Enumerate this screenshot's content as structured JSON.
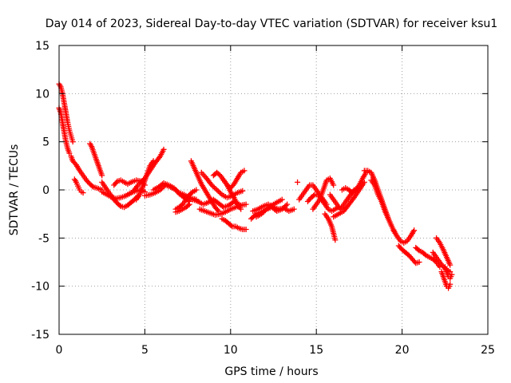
{
  "chart_data": {
    "type": "scatter",
    "title": "Day 014 of 2023, Sidereal Day-to-day VTEC variation (SDTVAR) for receiver ksu1",
    "xlabel": "GPS time / hours",
    "ylabel": "SDTVAR / TECUs",
    "xlim": [
      0,
      25
    ],
    "ylim": [
      -15,
      15
    ],
    "xticks": [
      0,
      5,
      10,
      15,
      20,
      25
    ],
    "yticks": [
      -15,
      -10,
      -5,
      0,
      5,
      10,
      15
    ],
    "grid": true,
    "marker": "+",
    "series": [
      {
        "name": "SDTVAR",
        "color": "#ff0000",
        "segments": [
          {
            "x": [
              0.0,
              0.1,
              0.2,
              0.3,
              0.4,
              0.5,
              0.6,
              0.7,
              0.8
            ],
            "y": [
              11.0,
              10.7,
              10.0,
              9.0,
              8.0,
              7.0,
              6.2,
              5.6,
              5.0
            ]
          },
          {
            "x": [
              0.0,
              0.1,
              0.2,
              0.3,
              0.4,
              0.5,
              0.6
            ],
            "y": [
              8.5,
              8.0,
              7.0,
              6.0,
              5.0,
              4.3,
              3.8
            ]
          },
          {
            "x": [
              0.7,
              0.8,
              1.0,
              1.2,
              1.4,
              1.6,
              1.8,
              2.0,
              2.2,
              2.5
            ],
            "y": [
              3.5,
              3.0,
              2.6,
              2.0,
              1.5,
              1.0,
              0.6,
              0.3,
              0.2,
              0.0
            ]
          },
          {
            "x": [
              0.9,
              1.0,
              1.1,
              1.2,
              1.3,
              1.4
            ],
            "y": [
              1.1,
              0.8,
              0.4,
              0.0,
              -0.2,
              -0.3
            ]
          },
          {
            "x": [
              1.8,
              1.9,
              2.0,
              2.1,
              2.2,
              2.3,
              2.4,
              2.5
            ],
            "y": [
              4.8,
              4.5,
              4.0,
              3.5,
              3.0,
              2.5,
              2.0,
              1.5
            ]
          },
          {
            "x": [
              2.5,
              2.8,
              3.0,
              3.2,
              3.4,
              3.6,
              3.8,
              4.0,
              4.2,
              4.4,
              4.6
            ],
            "y": [
              0.8,
              0.0,
              -0.5,
              -1.0,
              -1.4,
              -1.7,
              -1.8,
              -1.6,
              -1.3,
              -1.0,
              -0.6
            ]
          },
          {
            "x": [
              2.5,
              2.8,
              3.0,
              3.3,
              3.6,
              3.9,
              4.2,
              4.5,
              4.8,
              5.0
            ],
            "y": [
              -0.2,
              -0.5,
              -0.7,
              -0.9,
              -0.8,
              -0.6,
              -0.3,
              -0.1,
              0.0,
              -0.2
            ]
          },
          {
            "x": [
              3.2,
              3.4,
              3.6,
              3.8,
              4.0,
              4.2,
              4.5,
              4.8,
              5.0
            ],
            "y": [
              0.5,
              0.9,
              1.0,
              0.8,
              0.6,
              0.8,
              1.0,
              0.9,
              0.5
            ]
          },
          {
            "x": [
              4.0,
              4.3,
              4.6,
              5.0,
              5.3,
              5.6,
              5.9,
              6.1
            ],
            "y": [
              -0.5,
              -0.2,
              0.5,
              1.2,
              2.0,
              2.8,
              3.5,
              4.2
            ]
          },
          {
            "x": [
              4.5,
              4.7,
              4.9,
              5.1,
              5.3,
              5.5
            ],
            "y": [
              -1.0,
              -0.5,
              0.5,
              1.5,
              2.5,
              3.0
            ]
          },
          {
            "x": [
              5.0,
              5.3,
              5.6,
              5.9,
              6.2,
              6.5,
              6.8,
              7.0,
              7.3,
              7.6,
              8.0
            ],
            "y": [
              -0.6,
              -0.5,
              -0.3,
              0.0,
              0.5,
              0.3,
              0.0,
              -0.3,
              -0.5,
              -0.8,
              -1.0
            ]
          },
          {
            "x": [
              5.5,
              5.8,
              6.1,
              6.4,
              6.7,
              7.0,
              7.3,
              7.6
            ],
            "y": [
              0.0,
              0.3,
              0.7,
              0.5,
              0.2,
              -0.4,
              -0.8,
              -1.2
            ]
          },
          {
            "x": [
              6.8,
              7.0,
              7.2,
              7.4,
              7.6,
              7.8,
              8.0
            ],
            "y": [
              -2.0,
              -1.8,
              -1.5,
              -1.0,
              -0.5,
              -0.2,
              0.0
            ]
          },
          {
            "x": [
              6.8,
              7.0,
              7.2,
              7.4,
              7.6
            ],
            "y": [
              -2.3,
              -2.2,
              -2.0,
              -1.8,
              -1.5
            ]
          },
          {
            "x": [
              7.7,
              7.9,
              8.1,
              8.3,
              8.5,
              8.7,
              8.9,
              9.1,
              9.3
            ],
            "y": [
              3.0,
              2.2,
              1.4,
              0.6,
              0.0,
              -0.6,
              -1.2,
              -1.8,
              -2.2
            ]
          },
          {
            "x": [
              7.8,
              8.1,
              8.4,
              8.7,
              9.0,
              9.3,
              9.6,
              9.9,
              10.2,
              10.5
            ],
            "y": [
              -1.0,
              -1.2,
              -1.5,
              -1.3,
              -1.0,
              -1.4,
              -1.8,
              -1.6,
              -1.2,
              -1.5
            ]
          },
          {
            "x": [
              8.2,
              8.5,
              8.8,
              9.1,
              9.4,
              9.7,
              10.0,
              10.3,
              10.6,
              10.9
            ],
            "y": [
              -2.0,
              -2.2,
              -2.4,
              -2.6,
              -2.5,
              -2.3,
              -2.0,
              -1.8,
              -1.6,
              -1.5
            ]
          },
          {
            "x": [
              8.3,
              8.6,
              8.9,
              9.2,
              9.5,
              9.8,
              10.1,
              10.4,
              10.7
            ],
            "y": [
              1.8,
              1.2,
              0.5,
              0.0,
              -0.5,
              -0.8,
              -0.6,
              -0.3,
              -0.1
            ]
          },
          {
            "x": [
              9.0,
              9.2,
              9.4,
              9.6,
              9.8,
              10.0,
              10.2,
              10.4,
              10.6,
              10.8
            ],
            "y": [
              1.5,
              1.8,
              1.5,
              1.0,
              0.5,
              0.2,
              0.6,
              1.2,
              1.8,
              2.0
            ]
          },
          {
            "x": [
              9.5,
              9.7,
              9.9,
              10.1,
              10.3,
              10.5,
              10.7,
              10.9
            ],
            "y": [
              -3.0,
              -3.2,
              -3.5,
              -3.8,
              -3.8,
              -4.0,
              -4.1,
              -4.1
            ]
          },
          {
            "x": [
              9.6,
              9.8,
              10.0,
              10.2,
              10.4,
              10.6
            ],
            "y": [
              1.0,
              0.5,
              -0.2,
              -0.8,
              -1.5,
              -2.0
            ]
          },
          {
            "x": [
              11.2,
              11.5,
              11.8,
              12.1,
              12.4,
              12.7,
              13.0,
              13.3
            ],
            "y": [
              -3.0,
              -2.5,
              -2.3,
              -2.0,
              -1.8,
              -2.2,
              -2.0,
              -1.5
            ]
          },
          {
            "x": [
              11.3,
              11.6,
              11.9,
              12.2,
              12.5,
              12.8,
              13.1,
              13.4,
              13.7
            ],
            "y": [
              -2.2,
              -2.0,
              -1.7,
              -1.5,
              -1.8,
              -2.0,
              -1.9,
              -2.2,
              -2.0
            ]
          },
          {
            "x": [
              11.5,
              11.8,
              12.1,
              12.4,
              12.7,
              13.0
            ],
            "y": [
              -2.8,
              -2.5,
              -2.0,
              -1.6,
              -1.3,
              -1.0
            ]
          },
          {
            "x": [
              13.9
            ],
            "y": [
              0.8
            ]
          },
          {
            "x": [
              14.0,
              14.2,
              14.4,
              14.6,
              14.8,
              15.0,
              15.2,
              15.4,
              15.6
            ],
            "y": [
              -1.0,
              -0.5,
              0.0,
              0.5,
              0.5,
              0.0,
              -0.5,
              -1.0,
              -1.5
            ]
          },
          {
            "x": [
              14.5,
              14.7,
              14.9,
              15.1,
              15.3,
              15.5,
              15.7,
              15.9,
              16.1,
              16.3
            ],
            "y": [
              -1.2,
              -0.8,
              -0.5,
              -0.5,
              -1.0,
              -1.5,
              -2.0,
              -2.2,
              -2.0,
              -1.8
            ]
          },
          {
            "x": [
              14.8,
              15.0,
              15.2,
              15.4,
              15.6,
              15.8,
              16.0
            ],
            "y": [
              -2.0,
              -1.5,
              -1.0,
              0.0,
              1.0,
              1.2,
              0.5
            ]
          },
          {
            "x": [
              15.5,
              15.7,
              15.9,
              16.0,
              16.1
            ],
            "y": [
              -2.5,
              -3.0,
              -3.8,
              -4.5,
              -5.2
            ]
          },
          {
            "x": [
              15.8,
              16.0,
              16.2,
              16.4,
              16.6,
              16.8,
              17.0,
              17.2,
              17.4
            ],
            "y": [
              -0.5,
              -1.0,
              -1.5,
              -2.0,
              -1.5,
              -1.0,
              -0.5,
              0.0,
              0.2
            ]
          },
          {
            "x": [
              16.0,
              16.3,
              16.6,
              16.9,
              17.2,
              17.5,
              17.8
            ],
            "y": [
              -2.8,
              -2.5,
              -2.2,
              -1.5,
              -0.8,
              0.0,
              0.8
            ]
          },
          {
            "x": [
              16.5,
              16.7,
              16.9,
              17.1,
              17.3,
              17.5,
              17.7,
              17.9
            ],
            "y": [
              0.0,
              0.2,
              0.0,
              -0.3,
              0.0,
              0.5,
              1.2,
              1.8
            ]
          },
          {
            "x": [
              17.8,
              18.0,
              18.2,
              18.4,
              18.6,
              18.8,
              19.0,
              19.2,
              19.4,
              19.6
            ],
            "y": [
              2.0,
              2.0,
              1.8,
              1.0,
              0.0,
              -1.0,
              -2.0,
              -3.0,
              -3.8,
              -4.5
            ]
          },
          {
            "x": [
              18.2,
              18.4,
              18.6,
              18.8,
              19.0,
              19.2
            ],
            "y": [
              1.0,
              0.5,
              -0.5,
              -1.2,
              -2.2,
              -3.0
            ]
          },
          {
            "x": [
              19.5,
              19.7,
              19.9,
              20.1,
              20.3,
              20.5,
              20.7
            ],
            "y": [
              -4.2,
              -4.8,
              -5.3,
              -5.5,
              -5.3,
              -4.8,
              -4.2
            ]
          },
          {
            "x": [
              19.8,
              20.0,
              20.2,
              20.4,
              20.6,
              20.8,
              21.0
            ],
            "y": [
              -5.8,
              -6.2,
              -6.5,
              -6.8,
              -7.2,
              -7.6,
              -7.5
            ]
          },
          {
            "x": [
              20.8,
              21.0,
              21.2,
              21.4,
              21.6,
              21.8,
              22.0,
              22.2
            ],
            "y": [
              -6.0,
              -6.3,
              -6.5,
              -6.8,
              -7.0,
              -7.2,
              -7.5,
              -8.0
            ]
          },
          {
            "x": [
              21.8,
              22.0,
              22.2,
              22.4,
              22.6,
              22.8
            ],
            "y": [
              -6.5,
              -7.0,
              -7.5,
              -8.0,
              -8.3,
              -8.5
            ]
          },
          {
            "x": [
              22.0,
              22.2,
              22.4,
              22.6,
              22.8
            ],
            "y": [
              -5.0,
              -5.5,
              -6.2,
              -7.0,
              -7.8
            ]
          },
          {
            "x": [
              22.3,
              22.4,
              22.5,
              22.6,
              22.7,
              22.8
            ],
            "y": [
              -8.5,
              -9.0,
              -9.5,
              -10.0,
              -10.2,
              -9.8
            ]
          },
          {
            "x": [
              22.5,
              22.6,
              22.7,
              22.8,
              22.9
            ],
            "y": [
              -8.0,
              -8.5,
              -9.0,
              -9.2,
              -8.8
            ]
          }
        ]
      }
    ]
  }
}
